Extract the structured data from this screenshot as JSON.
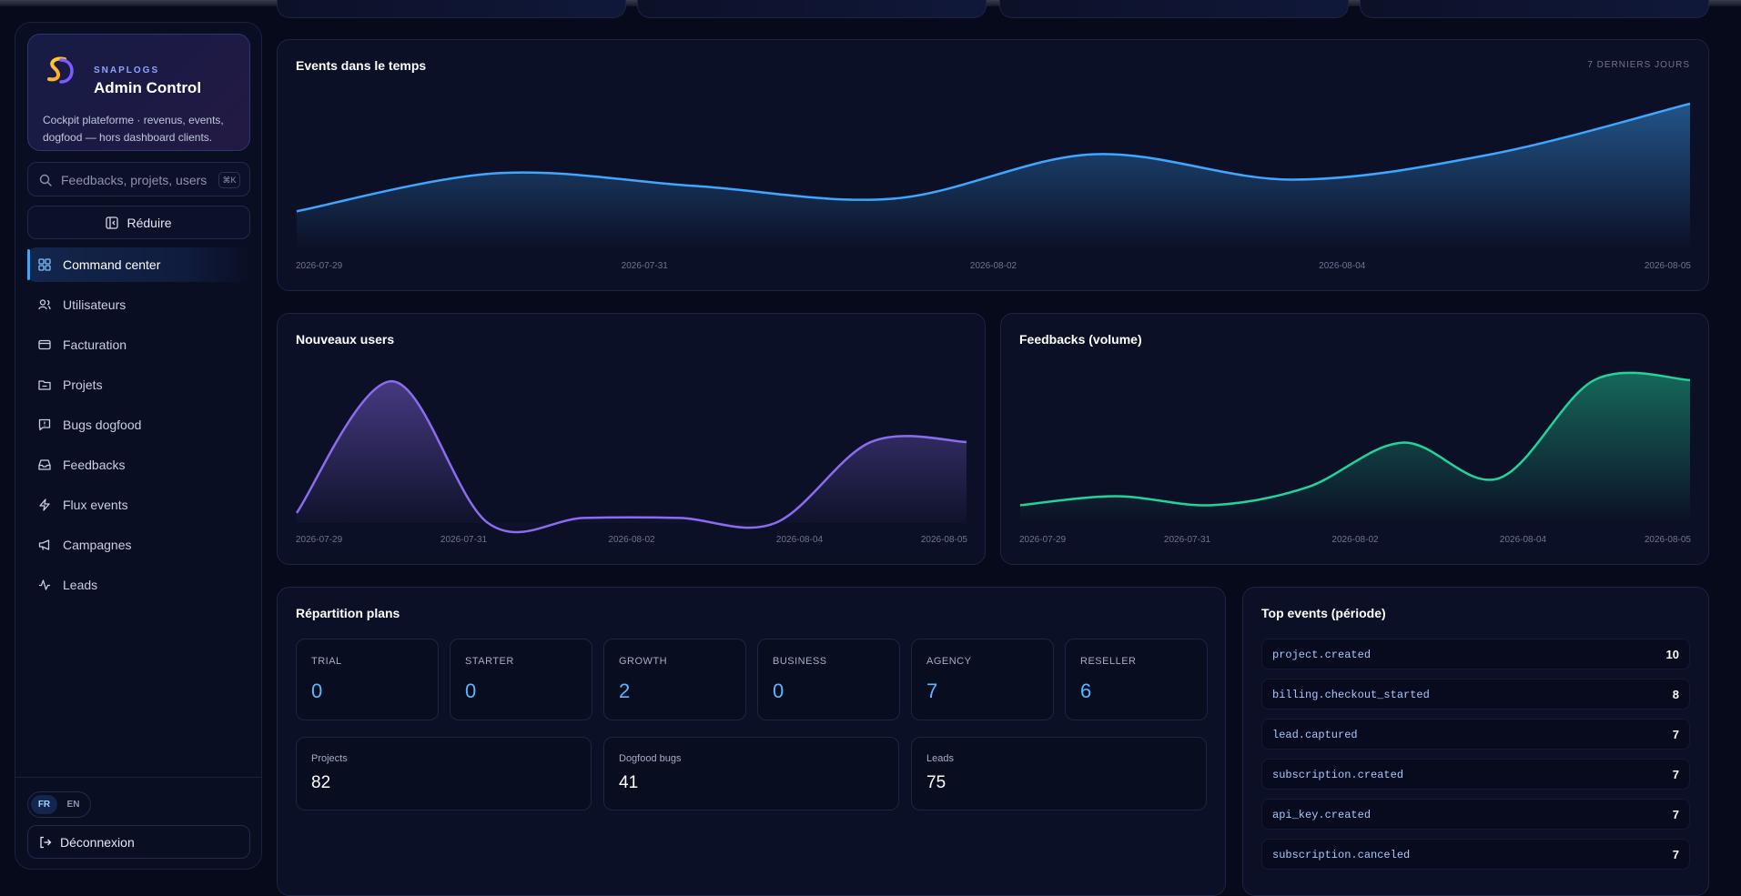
{
  "brand": {
    "kicker": "SNAPLOGS",
    "title": "Admin Control",
    "description": "Cockpit plateforme · revenus, events, dogfood — hors dashboard clients."
  },
  "search": {
    "placeholder": "Feedbacks, projets, users",
    "shortcut": "⌘K"
  },
  "collapse_label": "Réduire",
  "nav": [
    {
      "label": "Command center",
      "icon": "grid-icon",
      "active": true
    },
    {
      "label": "Utilisateurs",
      "icon": "users-icon"
    },
    {
      "label": "Facturation",
      "icon": "credit-card-icon"
    },
    {
      "label": "Projets",
      "icon": "folder-icon"
    },
    {
      "label": "Bugs dogfood",
      "icon": "message-alert-icon"
    },
    {
      "label": "Feedbacks",
      "icon": "inbox-icon"
    },
    {
      "label": "Flux events",
      "icon": "zap-icon"
    },
    {
      "label": "Campagnes",
      "icon": "megaphone-icon"
    },
    {
      "label": "Leads",
      "icon": "activity-icon"
    }
  ],
  "lang": {
    "fr": "FR",
    "en": "EN",
    "selected": "FR"
  },
  "logout_label": "Déconnexion",
  "events_card": {
    "title": "Events dans le temps",
    "period": "7 DERNIERS JOURS"
  },
  "users_card": {
    "title": "Nouveaux users"
  },
  "feedback_card": {
    "title": "Feedbacks (volume)"
  },
  "colors": {
    "events": "#3ea7ff",
    "users": "#8b6cf0",
    "feedbacks": "#22d39a"
  },
  "chart_data": [
    {
      "type": "area",
      "title": "Events dans le temps",
      "x": [
        "2026-07-29",
        "2026-07-30",
        "2026-07-31",
        "2026-08-01",
        "2026-08-02",
        "2026-08-03",
        "2026-08-04",
        "2026-08-05"
      ],
      "x_ticks": [
        "2026-07-29",
        "2026-07-31",
        "2026-08-02",
        "2026-08-04",
        "2026-08-05"
      ],
      "values": [
        6,
        12,
        10,
        8,
        15,
        11,
        15,
        23
      ],
      "ylim": [
        0,
        24
      ],
      "grid": false
    },
    {
      "type": "area",
      "title": "Nouveaux users",
      "x": [
        "2026-07-29",
        "2026-07-30",
        "2026-07-31",
        "2026-08-01",
        "2026-08-02",
        "2026-08-03",
        "2026-08-04",
        "2026-08-05"
      ],
      "x_ticks": [
        "2026-07-29",
        "2026-07-31",
        "2026-08-02",
        "2026-08-04",
        "2026-08-05"
      ],
      "values": [
        1,
        14,
        0,
        0.5,
        0.5,
        0,
        8,
        8
      ],
      "ylim": [
        0,
        15
      ],
      "grid": false
    },
    {
      "type": "area",
      "title": "Feedbacks (volume)",
      "x": [
        "2026-07-29",
        "2026-07-30",
        "2026-07-31",
        "2026-08-01",
        "2026-08-02",
        "2026-08-03",
        "2026-08-04",
        "2026-08-05"
      ],
      "x_ticks": [
        "2026-07-29",
        "2026-07-31",
        "2026-08-02",
        "2026-08-04",
        "2026-08-05"
      ],
      "values": [
        2,
        3,
        2,
        4,
        9,
        5,
        16,
        16
      ],
      "ylim": [
        0,
        17
      ],
      "grid": false
    }
  ],
  "plans_card": {
    "title": "Répartition plans",
    "plans": [
      {
        "label": "TRIAL",
        "value": "0"
      },
      {
        "label": "STARTER",
        "value": "0"
      },
      {
        "label": "GROWTH",
        "value": "2"
      },
      {
        "label": "BUSINESS",
        "value": "0"
      },
      {
        "label": "AGENCY",
        "value": "7"
      },
      {
        "label": "RESELLER",
        "value": "6"
      }
    ],
    "stats": [
      {
        "label": "Projects",
        "value": "82"
      },
      {
        "label": "Dogfood bugs",
        "value": "41"
      },
      {
        "label": "Leads",
        "value": "75"
      }
    ]
  },
  "top_events": {
    "title": "Top events (période)",
    "rows": [
      {
        "name": "project.created",
        "count": "10"
      },
      {
        "name": "billing.checkout_started",
        "count": "8"
      },
      {
        "name": "lead.captured",
        "count": "7"
      },
      {
        "name": "subscription.created",
        "count": "7"
      },
      {
        "name": "api_key.created",
        "count": "7"
      },
      {
        "name": "subscription.canceled",
        "count": "7"
      }
    ]
  }
}
